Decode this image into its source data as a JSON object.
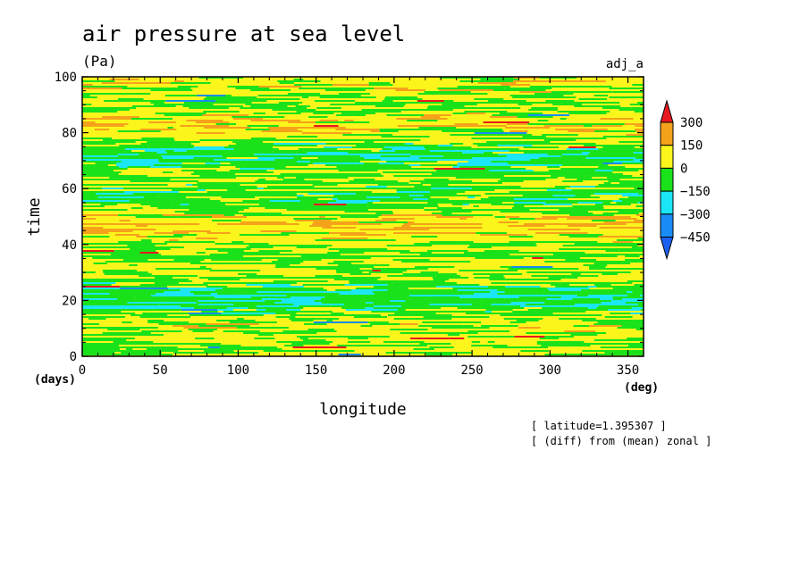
{
  "chart_data": {
    "type": "heatmap",
    "title": "air pressure at sea level",
    "units": "(Pa)",
    "label_right": "adj_a",
    "xlabel": "longitude",
    "ylabel": "time",
    "x_unit": "(deg)",
    "y_unit": "(days)",
    "xlim": [
      0,
      360
    ],
    "ylim": [
      0,
      100
    ],
    "x_ticks": [
      0,
      50,
      100,
      150,
      200,
      250,
      300,
      350
    ],
    "y_ticks": [
      0,
      20,
      40,
      60,
      80,
      100
    ],
    "x_tick_labels": [
      "0",
      "50",
      "100",
      "150",
      "200",
      "250",
      "300",
      "350"
    ],
    "y_tick_labels": [
      "0",
      "20",
      "40",
      "60",
      "80",
      "100"
    ],
    "colorbar": {
      "levels": [
        300,
        150,
        0,
        -150,
        -300,
        -450
      ],
      "labels": [
        "300",
        "150",
        "0",
        "−150",
        "−300",
        "−450"
      ],
      "colors": [
        "#e8191f",
        "#f5a21b",
        "#fbf51c",
        "#1ae21a",
        "#1ae6f5",
        "#1a8cf5",
        "#1a60f0"
      ]
    },
    "annotations": [
      "[ latitude=1.395307 ]",
      "[ (diff) from (mean) zonal ]"
    ],
    "field_description": "noisy zonally elongated anomalies mostly between -150 and 150 Pa"
  }
}
